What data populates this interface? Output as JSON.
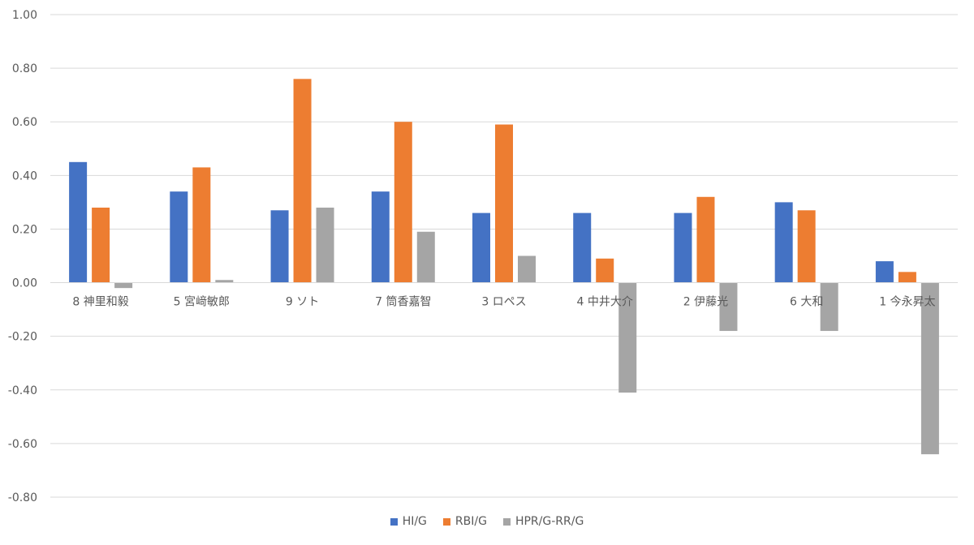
{
  "chart_data": {
    "type": "bar",
    "title": "",
    "xlabel": "",
    "ylabel": "",
    "categories": [
      "8 神里和毅",
      "5 宮﨑敏郎",
      "9 ソト",
      "7 筒香嘉智",
      "3 ロペス",
      "4 中井大介",
      "2 伊藤光",
      "6 大和",
      "1 今永昇太"
    ],
    "series": [
      {
        "name": "HI/G",
        "color": "#4472C4",
        "values": [
          0.45,
          0.34,
          0.27,
          0.34,
          0.26,
          0.26,
          0.26,
          0.3,
          0.08
        ]
      },
      {
        "name": "RBI/G",
        "color": "#ED7D31",
        "values": [
          0.28,
          0.43,
          0.76,
          0.6,
          0.59,
          0.09,
          0.32,
          0.27,
          0.04
        ]
      },
      {
        "name": "HPR/G-RR/G",
        "color": "#A5A5A5",
        "values": [
          -0.02,
          0.01,
          0.28,
          0.19,
          0.1,
          -0.41,
          -0.18,
          -0.18,
          -0.64
        ]
      }
    ],
    "ylim": [
      -0.8,
      1.0
    ],
    "yticks": [
      "1.00",
      "0.80",
      "0.60",
      "0.40",
      "0.20",
      "0.00",
      "-0.20",
      "-0.40",
      "-0.60",
      "-0.80"
    ],
    "grid": true,
    "legend_position": "bottom"
  },
  "colors": {
    "gridline": "#D9D9D9",
    "axis_text": "#595959"
  }
}
